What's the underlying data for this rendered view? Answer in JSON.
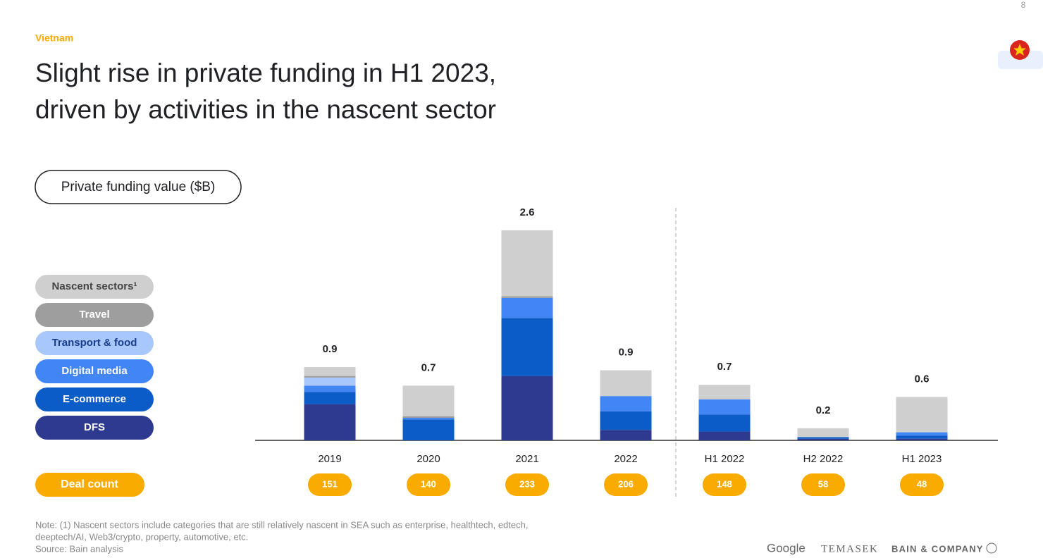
{
  "header": {
    "section": "Vietnam",
    "title_lines": [
      "Slight rise in private funding in H1 2023,",
      "driven by activities in the nascent sector"
    ],
    "page_number": 8
  },
  "chart_data": {
    "type": "stacked_bar",
    "axis_label": "Private funding value ($B)",
    "categories": [
      "2019",
      "2020",
      "2021",
      "2022",
      "H1 2022",
      "H2 2022",
      "H1 2023"
    ],
    "series": [
      {
        "name": "DFS",
        "color": "#2e3a8f",
        "values": [
          0.45,
          0,
          0.8,
          0.13,
          0.11,
          0.02,
          0.02
        ]
      },
      {
        "name": "E-commerce",
        "color": "#0b5cc6",
        "values": [
          0.15,
          0.26,
          0.72,
          0.23,
          0.21,
          0.02,
          0.04
        ]
      },
      {
        "name": "Digital media",
        "color": "#4285f4",
        "values": [
          0.08,
          0.02,
          0.25,
          0.19,
          0.19,
          0,
          0.04
        ]
      },
      {
        "name": "Transport & food",
        "color": "#a8c7fa",
        "values": [
          0.1,
          0,
          0,
          0,
          0,
          0,
          0
        ]
      },
      {
        "name": "Travel",
        "color": "#9e9e9e",
        "values": [
          0.02,
          0.02,
          0.02,
          0,
          0,
          0,
          0
        ]
      },
      {
        "name": "Nascent sectors¹",
        "color": "#cfcfcf",
        "values": [
          0.11,
          0.38,
          0.82,
          0.32,
          0.18,
          0.11,
          0.44
        ]
      }
    ],
    "totals": [
      0.9,
      0.7,
      2.6,
      0.9,
      0.7,
      0.2,
      0.6
    ],
    "deal_count_label": "Deal count",
    "deal_counts": [
      151,
      140,
      233,
      206,
      148,
      58,
      48
    ]
  },
  "footer": {
    "notes": [
      "Note: (1) Nascent sectors include categories that are still relatively nascent in SEA such as enterprise, healthtech, edtech,",
      "deeptech/AI, Web3/crypto, property, automotive, etc.",
      "Source: Bain analysis"
    ],
    "logos": [
      "Google",
      "TEMASEK",
      "BAIN & COMPANY"
    ]
  }
}
